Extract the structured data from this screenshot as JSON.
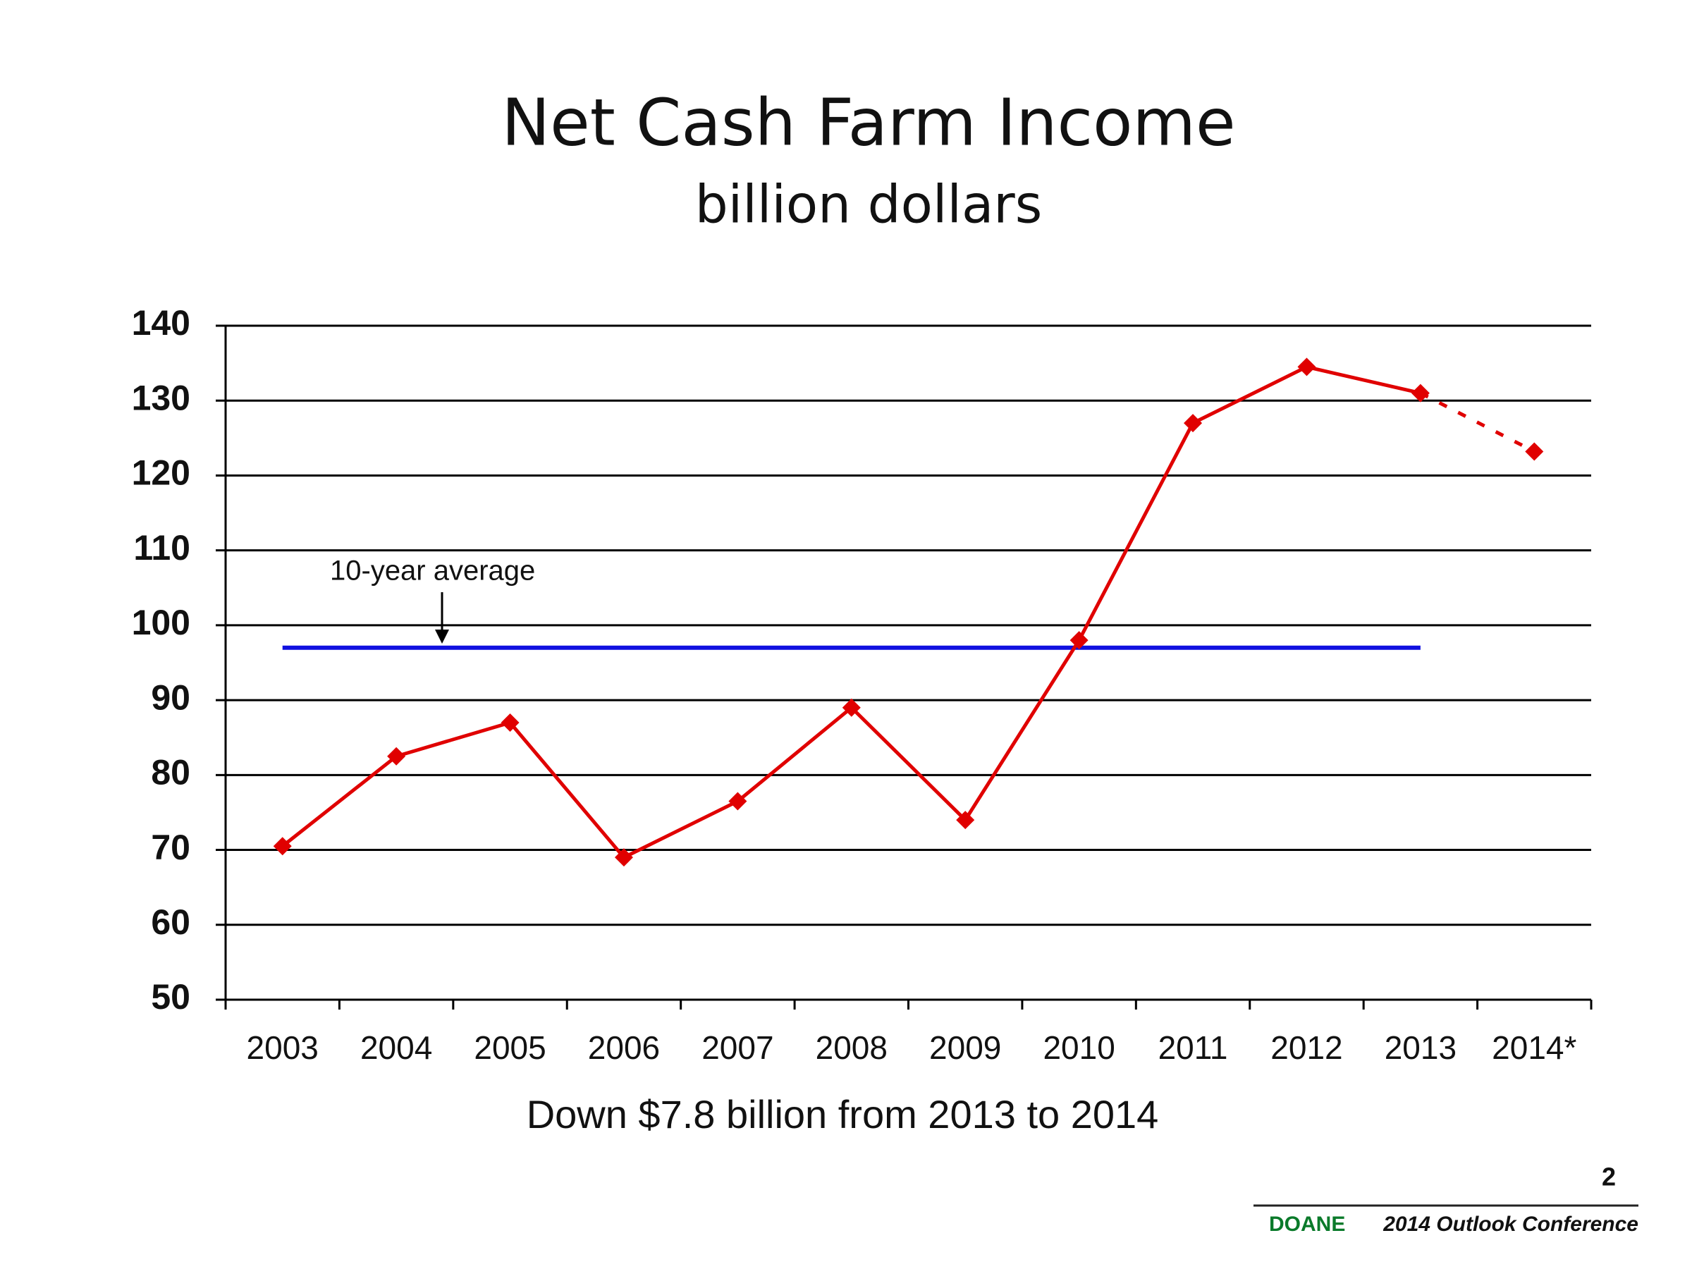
{
  "chart_data": {
    "type": "line",
    "title": "Net Cash Farm Income",
    "subtitle": "billion dollars",
    "categories": [
      "2003",
      "2004",
      "2005",
      "2006",
      "2007",
      "2008",
      "2009",
      "2010",
      "2011",
      "2012",
      "2013",
      "2014*"
    ],
    "series": [
      {
        "color": "#e00000",
        "values": [
          70.5,
          82.5,
          87,
          69,
          76.5,
          89,
          74,
          98,
          127,
          134.5,
          131,
          123.2
        ]
      }
    ],
    "dash_last_segment": true,
    "average": {
      "value": 97,
      "label": "10-year average",
      "color": "#1010e0"
    },
    "ylim": [
      50,
      140
    ],
    "yticks": [
      50,
      60,
      70,
      80,
      90,
      100,
      110,
      120,
      130,
      140
    ],
    "grid": true,
    "note": "Down $7.8 billion from 2013 to 2014"
  },
  "page_number": "2",
  "logo": "DOANE",
  "conference": "2014 Outlook Conference"
}
